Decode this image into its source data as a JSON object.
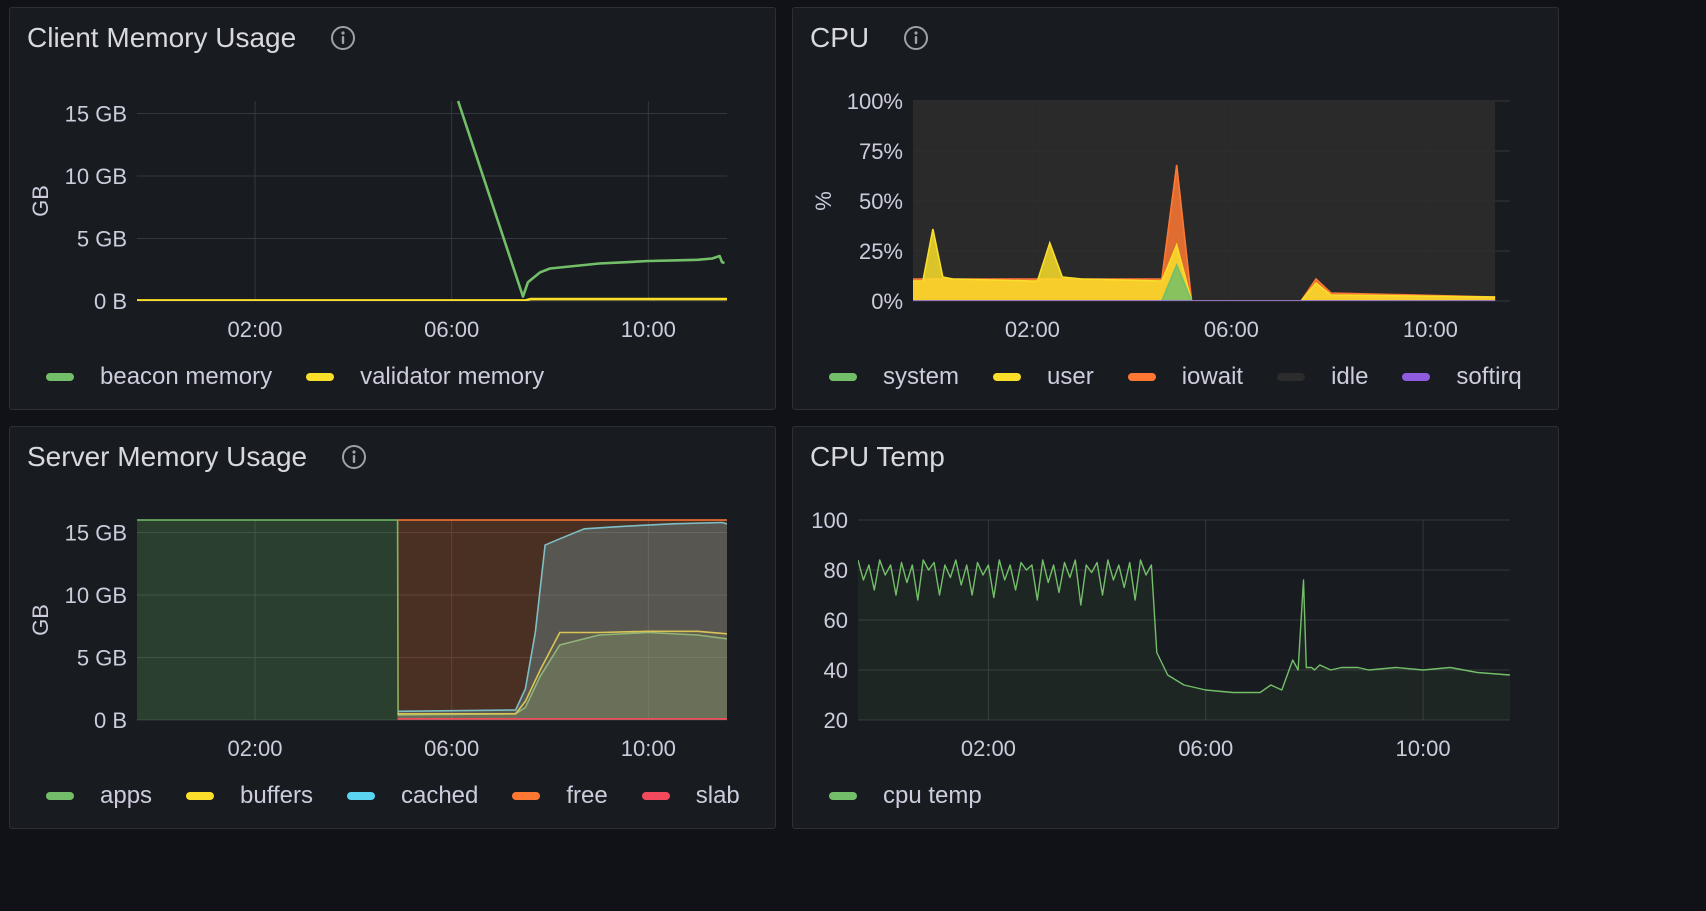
{
  "colors": {
    "green": "#73bf69",
    "yellow": "#fade2a",
    "orange": "#ff7833",
    "blue": "#5ad4f0",
    "red": "#f2495c",
    "purple": "#8f5ce0",
    "dark": "#2c2c2c"
  },
  "panels": {
    "client_memory": {
      "title": "Client Memory Usage",
      "legend": [
        {
          "label": "beacon memory",
          "color": "#73bf69"
        },
        {
          "label": "validator memory",
          "color": "#fade2a"
        }
      ]
    },
    "cpu": {
      "title": "CPU",
      "legend": [
        {
          "label": "system",
          "color": "#73bf69"
        },
        {
          "label": "user",
          "color": "#fade2a"
        },
        {
          "label": "iowait",
          "color": "#ff7833"
        },
        {
          "label": "idle",
          "color": "#2c2c2c"
        },
        {
          "label": "softirq",
          "color": "#8f5ce0"
        }
      ]
    },
    "server_memory": {
      "title": "Server Memory Usage",
      "legend": [
        {
          "label": "apps",
          "color": "#73bf69"
        },
        {
          "label": "buffers",
          "color": "#fade2a"
        },
        {
          "label": "cached",
          "color": "#5ad4f0"
        },
        {
          "label": "free",
          "color": "#ff7833"
        },
        {
          "label": "slab",
          "color": "#f2495c"
        }
      ]
    },
    "cpu_temp": {
      "title": "CPU Temp",
      "legend": [
        {
          "label": "cpu temp",
          "color": "#73bf69"
        }
      ]
    }
  },
  "chart_data": [
    {
      "id": "client_memory",
      "type": "line",
      "ylabel": "GB",
      "xlim": [
        -0.4,
        11.6
      ],
      "ylim": [
        0,
        16
      ],
      "x_ticks": [
        {
          "v": 2,
          "label": "02:00"
        },
        {
          "v": 6,
          "label": "06:00"
        },
        {
          "v": 10,
          "label": "10:00"
        }
      ],
      "y_ticks": [
        {
          "v": 0,
          "label": "0 B"
        },
        {
          "v": 5,
          "label": "5 GB"
        },
        {
          "v": 10,
          "label": "10 GB"
        },
        {
          "v": 15,
          "label": "15 GB"
        }
      ],
      "series": [
        {
          "name": "beacon memory",
          "color": "#73bf69",
          "x": [
            6.13,
            7.45,
            7.55,
            7.8,
            8.0,
            8.5,
            9.0,
            9.5,
            10.0,
            10.5,
            11.0,
            11.3,
            11.45,
            11.5,
            11.55
          ],
          "y": [
            16.0,
            0.35,
            1.5,
            2.3,
            2.6,
            2.8,
            3.0,
            3.1,
            3.2,
            3.25,
            3.3,
            3.4,
            3.6,
            3.1,
            3.05
          ]
        },
        {
          "name": "validator memory",
          "color": "#fade2a",
          "x": [
            -0.4,
            7.5,
            7.6,
            11.6
          ],
          "y": [
            0.05,
            0.05,
            0.15,
            0.15
          ]
        }
      ]
    },
    {
      "id": "cpu",
      "type": "area",
      "ylabel": "%",
      "xlim": [
        -0.4,
        11.6
      ],
      "ylim": [
        0,
        100
      ],
      "x_ticks": [
        {
          "v": 2,
          "label": "02:00"
        },
        {
          "v": 6,
          "label": "06:00"
        },
        {
          "v": 10,
          "label": "10:00"
        }
      ],
      "y_ticks": [
        {
          "v": 0,
          "label": "0%"
        },
        {
          "v": 25,
          "label": "25%"
        },
        {
          "v": 50,
          "label": "50%"
        },
        {
          "v": 75,
          "label": "75%"
        },
        {
          "v": 100,
          "label": "100%"
        }
      ],
      "series": [
        {
          "name": "idle",
          "color": "#2c2c2c",
          "x": [
            -0.4,
            11.3
          ],
          "y": [
            100,
            100
          ]
        },
        {
          "name": "iowait",
          "color": "#ff7833",
          "x": [
            -0.4,
            4.6,
            4.9,
            5.2,
            7.4,
            7.7,
            8.0,
            11.3
          ],
          "y": [
            11,
            11,
            68,
            0,
            0,
            11,
            4,
            2
          ]
        },
        {
          "name": "user",
          "color": "#fade2a",
          "x": [
            -0.4,
            -0.2,
            0.0,
            0.2,
            0.4,
            2.0,
            2.1,
            2.35,
            2.6,
            3.0,
            4.6,
            4.9,
            5.2,
            7.4,
            7.7,
            8.0,
            11.3
          ],
          "y": [
            10,
            10,
            36,
            12,
            11,
            10,
            10,
            29,
            12,
            11,
            10,
            28,
            0,
            0,
            9,
            3,
            2
          ]
        },
        {
          "name": "system",
          "color": "#73bf69",
          "x": [
            -0.4,
            4.6,
            4.9,
            5.2,
            11.3
          ],
          "y": [
            0,
            0,
            18,
            0,
            0
          ]
        },
        {
          "name": "softirq",
          "color": "#8f5ce0",
          "x": [
            -0.4,
            11.3
          ],
          "y": [
            0,
            0
          ]
        }
      ]
    },
    {
      "id": "server_memory",
      "type": "area",
      "ylabel": "GB",
      "xlim": [
        -0.4,
        11.6
      ],
      "ylim": [
        0,
        16
      ],
      "x_ticks": [
        {
          "v": 2,
          "label": "02:00"
        },
        {
          "v": 6,
          "label": "06:00"
        },
        {
          "v": 10,
          "label": "10:00"
        }
      ],
      "y_ticks": [
        {
          "v": 0,
          "label": "0 B"
        },
        {
          "v": 5,
          "label": "5 GB"
        },
        {
          "v": 10,
          "label": "10 GB"
        },
        {
          "v": 15,
          "label": "15 GB"
        }
      ],
      "series": [
        {
          "name": "apps",
          "color": "#73bf69",
          "x": [
            -0.4,
            4.9,
            4.91,
            7.3,
            7.5,
            7.8,
            8.2,
            9.0,
            10.0,
            11.0,
            11.6
          ],
          "y": [
            16,
            16,
            0.4,
            0.5,
            1.0,
            3.5,
            6.0,
            6.8,
            7.0,
            6.8,
            6.5
          ]
        },
        {
          "name": "buffers",
          "color": "#fade2a",
          "x": [
            4.9,
            7.3,
            7.5,
            7.8,
            8.2,
            9.0,
            10.0,
            11.0,
            11.6
          ],
          "y": [
            0.5,
            0.5,
            1.5,
            4.0,
            7.0,
            7.0,
            7.1,
            7.1,
            6.9
          ]
        },
        {
          "name": "cached",
          "color": "#5ad4f0",
          "x": [
            4.9,
            7.3,
            7.5,
            7.7,
            7.9,
            8.2,
            8.7,
            9.5,
            10.5,
            11.5,
            11.6
          ],
          "y": [
            0.7,
            0.8,
            2.5,
            7.0,
            14.0,
            14.5,
            15.3,
            15.5,
            15.7,
            15.8,
            15.7
          ]
        },
        {
          "name": "free",
          "color": "#ff7833",
          "x": [
            4.9,
            11.6
          ],
          "y": [
            16,
            16
          ]
        },
        {
          "name": "slab",
          "color": "#f2495c",
          "x": [
            4.9,
            11.6
          ],
          "y": [
            0.1,
            0.1
          ]
        }
      ]
    },
    {
      "id": "cpu_temp",
      "type": "line",
      "ylabel": "",
      "xlim": [
        -0.4,
        11.6
      ],
      "ylim": [
        20,
        100
      ],
      "x_ticks": [
        {
          "v": 2,
          "label": "02:00"
        },
        {
          "v": 6,
          "label": "06:00"
        },
        {
          "v": 10,
          "label": "10:00"
        }
      ],
      "y_ticks": [
        {
          "v": 20,
          "label": "20"
        },
        {
          "v": 40,
          "label": "40"
        },
        {
          "v": 60,
          "label": "60"
        },
        {
          "v": 80,
          "label": "80"
        },
        {
          "v": 100,
          "label": "100"
        }
      ],
      "series": [
        {
          "name": "cpu temp",
          "color": "#73bf69",
          "x": [
            -0.4,
            -0.3,
            -0.2,
            -0.1,
            0.0,
            0.1,
            0.2,
            0.3,
            0.4,
            0.5,
            0.6,
            0.7,
            0.8,
            0.9,
            1.0,
            1.1,
            1.2,
            1.3,
            1.4,
            1.5,
            1.6,
            1.7,
            1.8,
            1.9,
            2.0,
            2.1,
            2.2,
            2.3,
            2.4,
            2.5,
            2.6,
            2.7,
            2.8,
            2.9,
            3.0,
            3.1,
            3.2,
            3.3,
            3.4,
            3.5,
            3.6,
            3.7,
            3.8,
            3.9,
            4.0,
            4.1,
            4.2,
            4.3,
            4.4,
            4.5,
            4.6,
            4.7,
            4.8,
            4.9,
            5.0,
            5.1,
            5.3,
            5.6,
            6.0,
            6.5,
            7.0,
            7.2,
            7.4,
            7.6,
            7.7,
            7.8,
            7.85,
            7.95,
            8.0,
            8.1,
            8.3,
            8.5,
            8.8,
            9.0,
            9.5,
            10.0,
            10.5,
            11.0,
            11.6
          ],
          "y": [
            84,
            76,
            82,
            72,
            84,
            78,
            82,
            70,
            83,
            75,
            82,
            68,
            84,
            80,
            83,
            70,
            82,
            77,
            84,
            74,
            82,
            70,
            83,
            78,
            82,
            69,
            84,
            76,
            82,
            72,
            83,
            80,
            82,
            68,
            84,
            75,
            82,
            71,
            83,
            77,
            84,
            66,
            82,
            79,
            83,
            70,
            84,
            76,
            82,
            73,
            83,
            68,
            84,
            78,
            82,
            47,
            38,
            34,
            32,
            31,
            31,
            34,
            32,
            44,
            40,
            76,
            41,
            41,
            40,
            42,
            40,
            41,
            41,
            40,
            41,
            40,
            41,
            39,
            38
          ]
        }
      ]
    }
  ]
}
